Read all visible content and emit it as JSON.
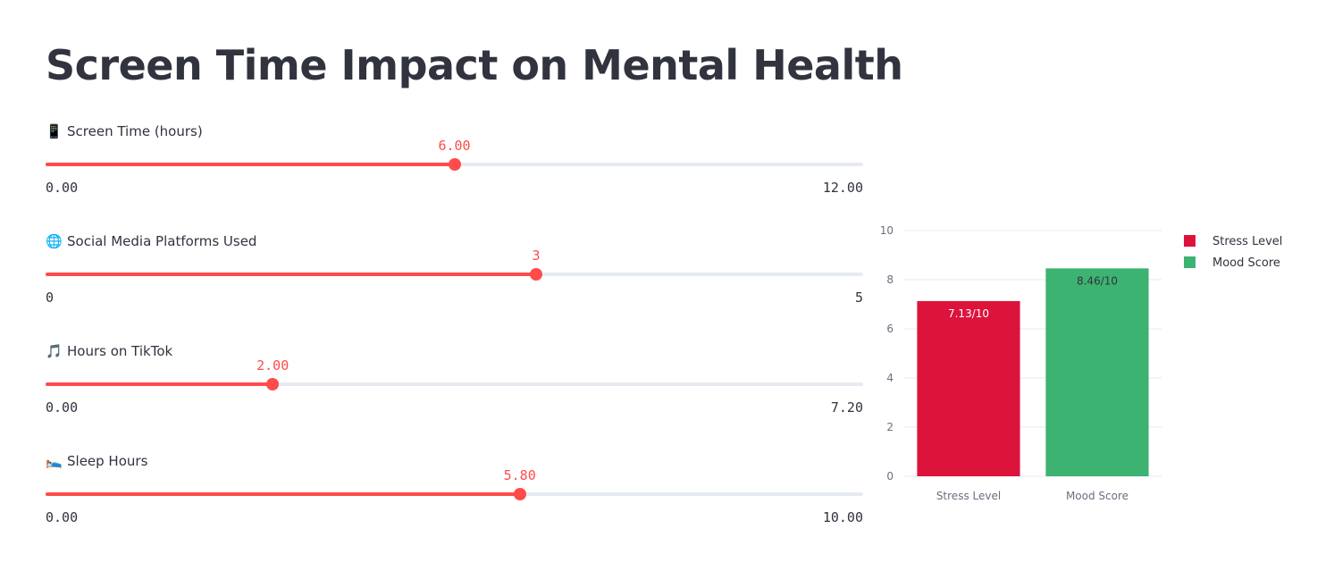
{
  "title": "Screen Time Impact on Mental Health",
  "sliders": [
    {
      "emoji": "📱",
      "label": "Screen Time (hours)",
      "value": "6.00",
      "min": "0.00",
      "max": "12.00",
      "fraction": 0.5
    },
    {
      "emoji": "🌐",
      "label": "Social Media Platforms Used",
      "value": "3",
      "min": "0",
      "max": "5",
      "fraction": 0.6
    },
    {
      "emoji": "🎵",
      "label": "Hours on TikTok",
      "value": "2.00",
      "min": "0.00",
      "max": "7.20",
      "fraction": 0.2778
    },
    {
      "emoji": "🛌",
      "label": "Sleep Hours",
      "value": "5.80",
      "min": "0.00",
      "max": "10.00",
      "fraction": 0.58
    }
  ],
  "colors": {
    "accent": "#ff4b4b",
    "track": "#e6eaf1",
    "stress": "#dc143c",
    "mood": "#3cb371"
  },
  "chart_data": {
    "type": "bar",
    "categories": [
      "Stress Level",
      "Mood Score"
    ],
    "values": [
      7.13,
      8.46
    ],
    "data_labels": [
      "7.13/10",
      "8.46/10"
    ],
    "colors": [
      "#dc143c",
      "#3cb371"
    ],
    "yticks": [
      0,
      2,
      4,
      6,
      8,
      10
    ],
    "ylim": [
      0,
      10
    ],
    "grid": true,
    "legend": {
      "placement": "top-right",
      "entries": [
        "Stress Level",
        "Mood Score"
      ]
    }
  }
}
